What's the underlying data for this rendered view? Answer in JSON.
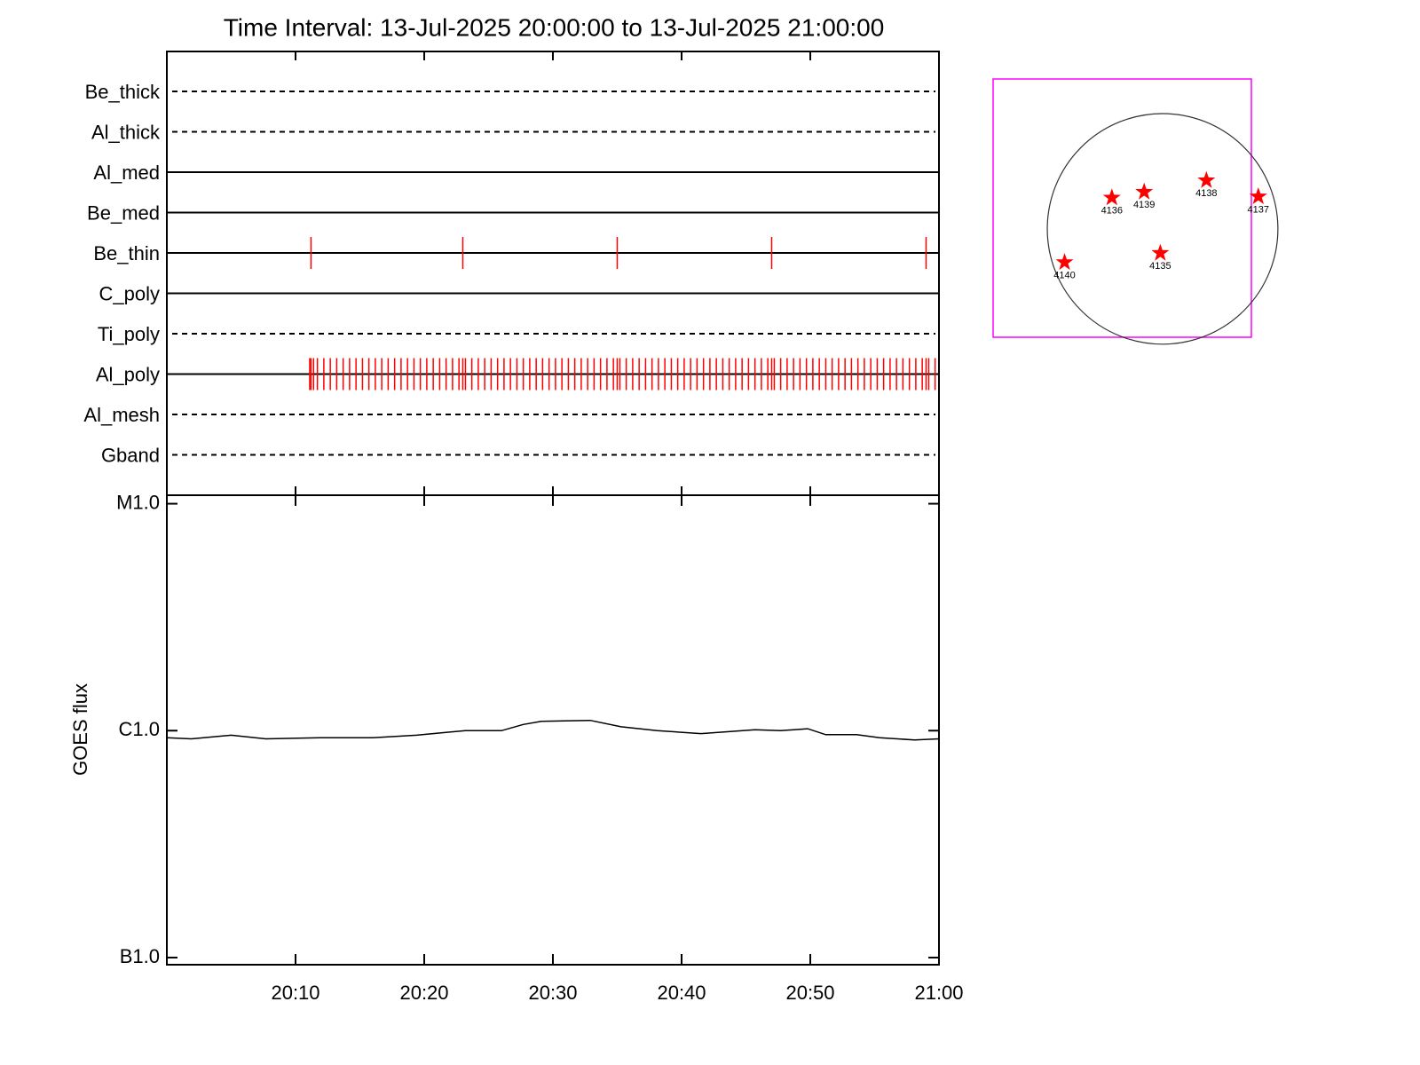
{
  "chart_data": [
    {
      "type": "timeline",
      "title": "Time Interval: 13-Jul-2025 20:00:00 to 13-Jul-2025 21:00:00",
      "xlim": [
        0,
        60
      ],
      "event_color": "#ff0000",
      "rows": [
        {
          "name": "Be_thick",
          "line_style": "dashed",
          "events": []
        },
        {
          "name": "Al_thick",
          "line_style": "dashed",
          "events": []
        },
        {
          "name": "Al_med",
          "line_style": "solid",
          "events": []
        },
        {
          "name": "Be_med",
          "line_style": "solid",
          "events": []
        },
        {
          "name": "Be_thin",
          "line_style": "solid",
          "events": [
            11.2,
            23.0,
            35.0,
            47.0,
            59.0
          ]
        },
        {
          "name": "C_poly",
          "line_style": "solid",
          "events": []
        },
        {
          "name": "Ti_poly",
          "line_style": "dashed",
          "events": []
        },
        {
          "name": "Al_poly",
          "line_style": "solid",
          "events": [
            11.1,
            11.2,
            11.4,
            11.7,
            12.2,
            12.7,
            13.2,
            13.7,
            14.2,
            14.7,
            15.2,
            15.7,
            16.2,
            16.7,
            17.2,
            17.7,
            18.2,
            18.7,
            19.2,
            19.7,
            20.2,
            20.7,
            21.2,
            21.7,
            22.2,
            22.7,
            23.0,
            23.2,
            23.7,
            24.2,
            24.7,
            25.2,
            25.7,
            26.2,
            26.7,
            27.2,
            27.7,
            28.2,
            28.7,
            29.2,
            29.7,
            30.2,
            30.7,
            31.2,
            31.7,
            32.2,
            32.7,
            33.2,
            33.7,
            34.2,
            34.7,
            35.0,
            35.2,
            35.7,
            36.2,
            36.7,
            37.2,
            37.7,
            38.2,
            38.7,
            39.2,
            39.7,
            40.2,
            40.7,
            41.2,
            41.7,
            42.2,
            42.7,
            43.2,
            43.7,
            44.2,
            44.7,
            45.2,
            45.7,
            46.2,
            46.7,
            47.0,
            47.2,
            47.7,
            48.2,
            48.7,
            49.2,
            49.7,
            50.2,
            50.7,
            51.2,
            51.7,
            52.2,
            52.7,
            53.2,
            53.7,
            54.2,
            54.7,
            55.2,
            55.7,
            56.2,
            56.7,
            57.2,
            57.7,
            58.2,
            58.7,
            59.0,
            59.2,
            59.7
          ]
        },
        {
          "name": "Al_mesh",
          "line_style": "dashed",
          "events": []
        },
        {
          "name": "Gband",
          "line_style": "dashed",
          "events": []
        }
      ]
    },
    {
      "type": "line",
      "y_label": "GOES flux",
      "color": "#000000",
      "log_y": true,
      "xlim": [
        0,
        60
      ],
      "xticks": [
        {
          "value": 10,
          "label": "20:10"
        },
        {
          "value": 20,
          "label": "20:20"
        },
        {
          "value": 30,
          "label": "20:30"
        },
        {
          "value": 40,
          "label": "20:40"
        },
        {
          "value": 50,
          "label": "20:50"
        },
        {
          "value": 60,
          "label": "21:00"
        }
      ],
      "ylim": [
        9.3e-08,
        1.09e-05
      ],
      "yticks": [
        {
          "value": 1e-07,
          "label": "B1.0"
        },
        {
          "value": 1e-06,
          "label": "C1.0"
        },
        {
          "value": 1e-05,
          "label": "M1.0"
        }
      ],
      "x": [
        0,
        1.9,
        5,
        7.7,
        11.9,
        16,
        19.4,
        21.5,
        23.2,
        26,
        27.7,
        29.1,
        32.9,
        35.3,
        38.1,
        41.5,
        45.7,
        47.7,
        49.8,
        51.2,
        53.6,
        55.4,
        58.1,
        60
      ],
      "values": [
        9.3e-07,
        9.2e-07,
        9.55e-07,
        9.2e-07,
        9.3e-07,
        9.3e-07,
        9.55e-07,
        9.8e-07,
        1e-06,
        1e-06,
        1.065e-06,
        1.1e-06,
        1.11e-06,
        1.04e-06,
        1e-06,
        9.7e-07,
        1.01e-06,
        1e-06,
        1.02e-06,
        9.6e-07,
        9.6e-07,
        9.3e-07,
        9.1e-07,
        9.2e-07
      ]
    },
    {
      "type": "scatter",
      "color": "#ff0000",
      "box_color": "#ff00ff",
      "disk_color": "#333333",
      "xlim": [
        -1.47,
        0.77
      ],
      "ylim": [
        -0.94,
        1.3
      ],
      "labels": [
        "4136",
        "4139",
        "4138",
        "4137",
        "4135",
        "4140"
      ],
      "x": [
        -0.44,
        -0.16,
        0.38,
        0.83,
        -0.02,
        -0.85
      ],
      "y": [
        0.27,
        0.32,
        0.42,
        0.28,
        -0.21,
        -0.29
      ]
    }
  ]
}
